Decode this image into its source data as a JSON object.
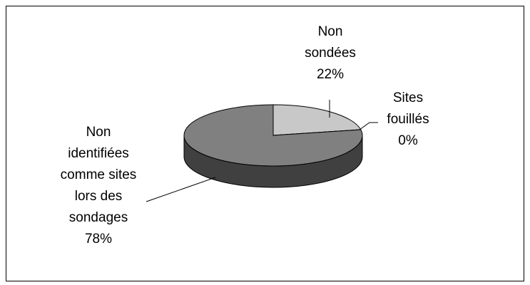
{
  "chart_data": {
    "type": "pie",
    "three_d": true,
    "categories": [
      "Non sondées",
      "Sites fouillés",
      "Non identifiées comme sites lors des sondages"
    ],
    "values": [
      22,
      0,
      78
    ],
    "value_labels": [
      "22%",
      "0%",
      "78%"
    ],
    "colors": [
      "#c8c8c8",
      "#ffffff",
      "#808080"
    ]
  }
}
